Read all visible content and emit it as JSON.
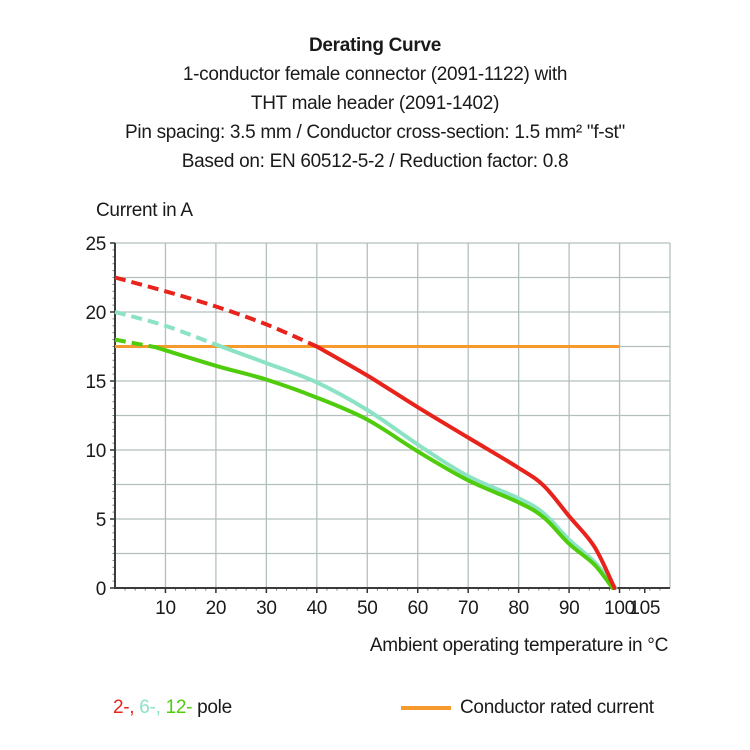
{
  "header": {
    "title": "Derating Curve",
    "subtitle_lines": [
      "1-conductor female connector (2091-1122) with",
      "THT male header (2091-1402)",
      "Pin spacing: 3.5 mm / Conductor cross-section: 1.5 mm² \"f-st\"",
      "Based on: EN 60512-5-2 / Reduction factor: 0.8"
    ]
  },
  "chart_data": {
    "type": "line",
    "title": "Derating Curve",
    "xlabel": "Ambient operating temperature in °C",
    "ylabel": "Current in A",
    "xlim": [
      0,
      110
    ],
    "ylim": [
      0,
      25
    ],
    "x_major_ticks": [
      10,
      20,
      30,
      40,
      50,
      60,
      70,
      80,
      90,
      100,
      105
    ],
    "y_major_ticks": [
      0,
      5,
      10,
      15,
      20,
      25
    ],
    "x_grid_step": 10,
    "y_grid_step": 2.5,
    "x_minor_step": 2,
    "y_minor_step": 0.5,
    "grid": true,
    "grid_color": "#b3bfbf",
    "axis_color": "#3c3c3c",
    "series": [
      {
        "name": "2-pole",
        "color": "#e8231c",
        "style_note": "dashed until it meets rated current line, solid after",
        "dash_until": 40,
        "points": [
          [
            0,
            22.5
          ],
          [
            10,
            21.5
          ],
          [
            20,
            20.4
          ],
          [
            30,
            19.1
          ],
          [
            40,
            17.5
          ],
          [
            50,
            15.4
          ],
          [
            60,
            13.1
          ],
          [
            70,
            10.9
          ],
          [
            80,
            8.7
          ],
          [
            85,
            7.4
          ],
          [
            90,
            5.2
          ],
          [
            95,
            3.0
          ],
          [
            99,
            0
          ]
        ]
      },
      {
        "name": "6-pole",
        "color": "#8ce3c4",
        "style_note": "dashed until it meets rated current line, solid after",
        "dash_until": 21,
        "points": [
          [
            0,
            20.0
          ],
          [
            10,
            19.0
          ],
          [
            21,
            17.5
          ],
          [
            30,
            16.3
          ],
          [
            40,
            14.9
          ],
          [
            50,
            12.9
          ],
          [
            60,
            10.4
          ],
          [
            70,
            8.1
          ],
          [
            80,
            6.5
          ],
          [
            85,
            5.4
          ],
          [
            90,
            3.5
          ],
          [
            95,
            1.9
          ],
          [
            99.2,
            0
          ]
        ]
      },
      {
        "name": "12-pole",
        "color": "#4fcc0c",
        "style_note": "dashed until it meets rated current line, solid after",
        "dash_until": 8,
        "points": [
          [
            0,
            18.0
          ],
          [
            8,
            17.45
          ],
          [
            20,
            16.1
          ],
          [
            30,
            15.1
          ],
          [
            40,
            13.8
          ],
          [
            50,
            12.2
          ],
          [
            60,
            9.9
          ],
          [
            70,
            7.8
          ],
          [
            80,
            6.2
          ],
          [
            85,
            5.1
          ],
          [
            90,
            3.2
          ],
          [
            95,
            1.7
          ],
          [
            98.6,
            0
          ]
        ]
      }
    ],
    "reference_line": {
      "label": "Conductor rated current",
      "color": "#f79a2e",
      "y": 17.5,
      "x_start": 0,
      "x_end": 100
    },
    "legend_position": "bottom"
  },
  "legend": {
    "poles": [
      {
        "label": "2-,"
      },
      {
        "label": "6-,"
      },
      {
        "label": "12-"
      }
    ],
    "pole_suffix": "pole",
    "rated_label": "Conductor rated current"
  }
}
